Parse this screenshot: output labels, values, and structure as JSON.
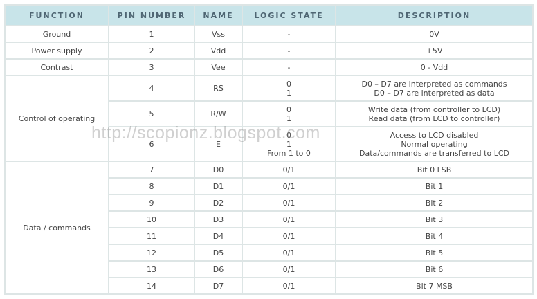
{
  "headers": [
    "FUNCTION",
    "PIN NUMBER",
    "NAME",
    "LOGIC STATE",
    "DESCRIPTION"
  ],
  "rows": [
    {
      "function": "Ground",
      "pin": "1",
      "name": "Vss",
      "logic": [
        "-"
      ],
      "desc": [
        "0V"
      ]
    },
    {
      "function": "Power supply",
      "pin": "2",
      "name": "Vdd",
      "logic": [
        "-"
      ],
      "desc": [
        "+5V"
      ]
    },
    {
      "function": "Contrast",
      "pin": "3",
      "name": "Vee",
      "logic": [
        "-"
      ],
      "desc": [
        "0 - Vdd"
      ]
    },
    {
      "function": "Control of operating",
      "pin": "4",
      "name": "RS",
      "logic": [
        "0",
        "1"
      ],
      "desc": [
        "D0 – D7 are interpreted as commands",
        "D0 – D7 are interpreted as data"
      ]
    },
    {
      "pin": "5",
      "name": "R/W",
      "logic": [
        "0",
        "1"
      ],
      "desc": [
        "Write data (from controller to LCD)",
        "Read data (from LCD to controller)"
      ]
    },
    {
      "pin": "6",
      "name": "E",
      "logic": [
        "0",
        "1",
        "From 1 to 0"
      ],
      "desc": [
        "Access to LCD disabled",
        "Normal operating",
        "Data/commands are transferred to LCD"
      ]
    },
    {
      "function": "Data / commands",
      "pin": "7",
      "name": "D0",
      "logic": [
        "0/1"
      ],
      "desc": [
        "Bit 0 LSB"
      ]
    },
    {
      "pin": "8",
      "name": "D1",
      "logic": [
        "0/1"
      ],
      "desc": [
        "Bit 1"
      ]
    },
    {
      "pin": "9",
      "name": "D2",
      "logic": [
        "0/1"
      ],
      "desc": [
        "Bit 2"
      ]
    },
    {
      "pin": "10",
      "name": "D3",
      "logic": [
        "0/1"
      ],
      "desc": [
        "Bit 3"
      ]
    },
    {
      "pin": "11",
      "name": "D4",
      "logic": [
        "0/1"
      ],
      "desc": [
        "Bit 4"
      ]
    },
    {
      "pin": "12",
      "name": "D5",
      "logic": [
        "0/1"
      ],
      "desc": [
        "Bit 5"
      ]
    },
    {
      "pin": "13",
      "name": "D6",
      "logic": [
        "0/1"
      ],
      "desc": [
        "Bit 6"
      ]
    },
    {
      "pin": "14",
      "name": "D7",
      "logic": [
        "0/1"
      ],
      "desc": [
        "Bit 7 MSB"
      ]
    }
  ],
  "watermark": "http://scopionz.blogspot.com",
  "colors": {
    "header_bg": "#c8e4e9",
    "header_text": "#4f6673",
    "border": "#dde5e5"
  }
}
